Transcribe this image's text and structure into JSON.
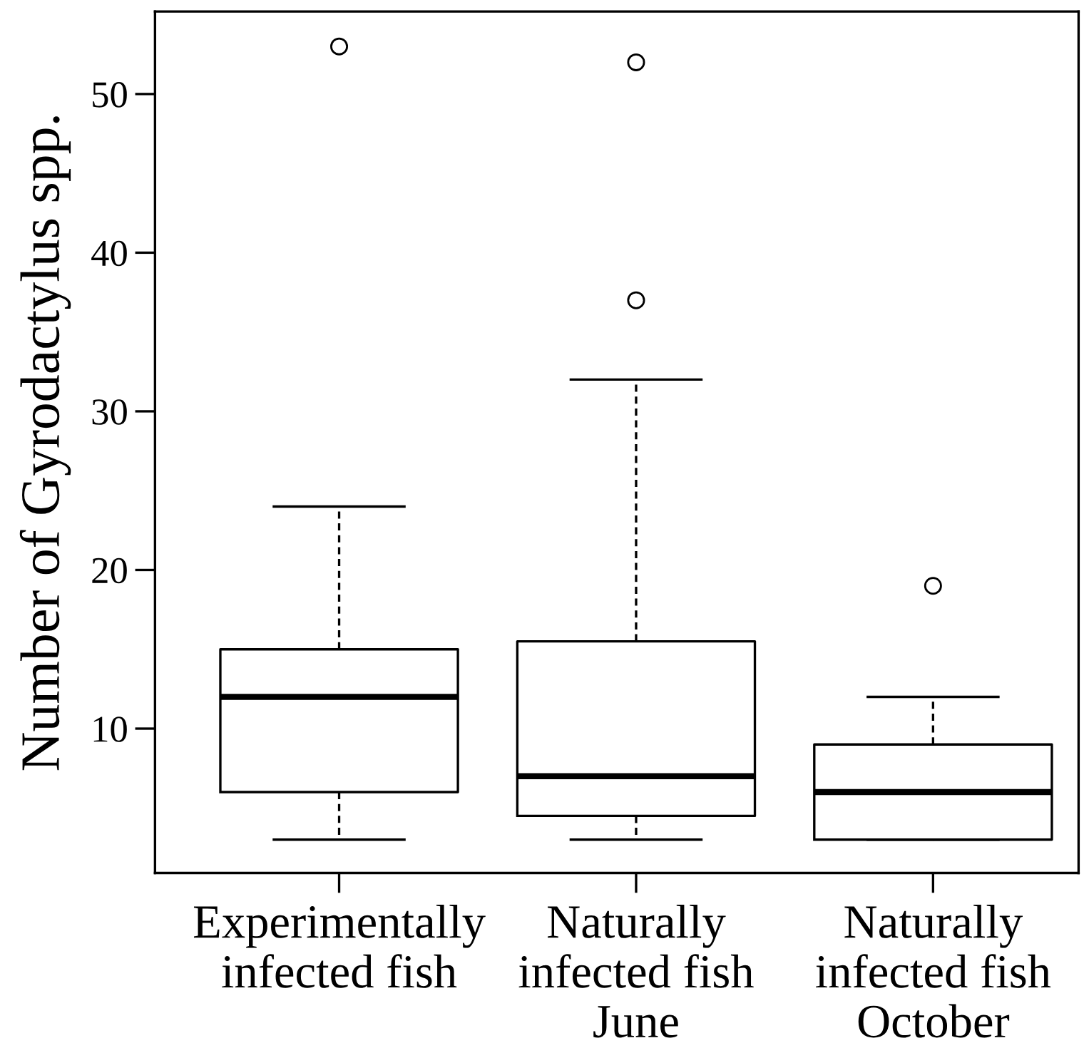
{
  "chart_data": {
    "type": "box",
    "ylabel": "Number of Gyrodactylus spp.",
    "categories": [
      "Experimentally\ninfected fish",
      "Naturally\ninfected fish\nJune",
      "Naturally\ninfected fish\nOctober"
    ],
    "boxes": [
      {
        "low": 3,
        "q1": 6,
        "median": 12,
        "q3": 15,
        "high": 24,
        "outliers": [
          53
        ]
      },
      {
        "low": 3,
        "q1": 4.5,
        "median": 7,
        "q3": 15.5,
        "high": 32,
        "outliers": [
          37,
          52
        ]
      },
      {
        "low": 3,
        "q1": 3,
        "median": 6,
        "q3": 9,
        "high": 12,
        "outliers": [
          19
        ]
      }
    ],
    "ylim": [
      0.9,
      55.2
    ],
    "yticks": [
      10,
      20,
      30,
      40,
      50
    ],
    "grid": false
  }
}
